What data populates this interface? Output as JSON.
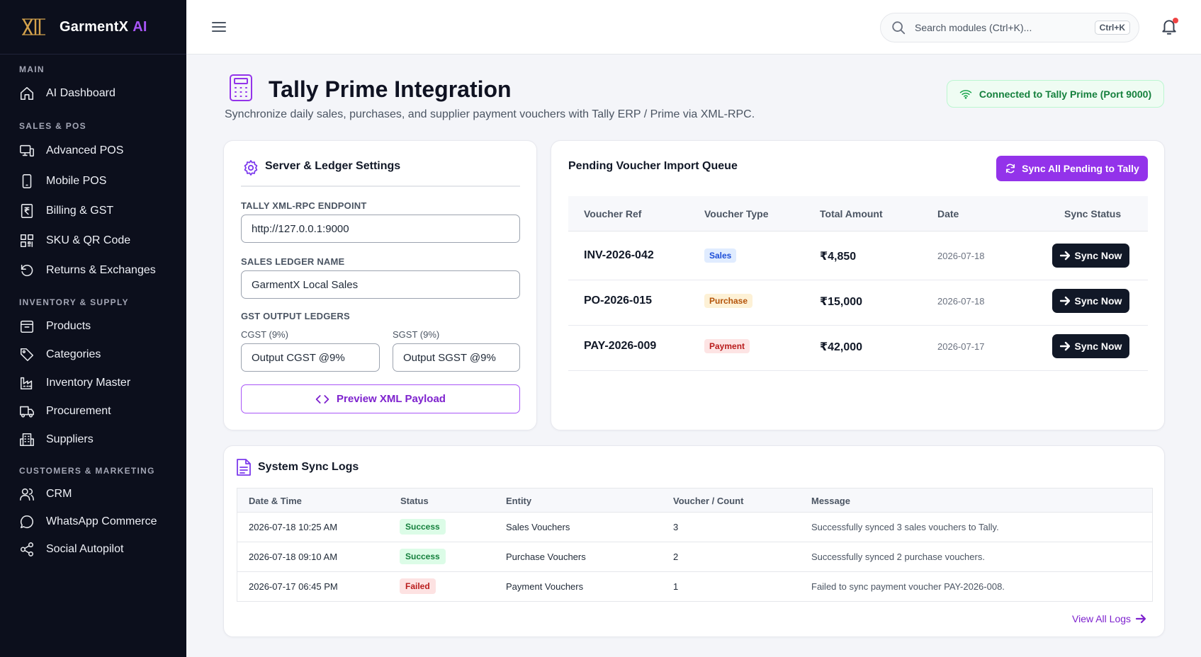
{
  "brand": {
    "name": "GarmentX",
    "accent_word": "AI",
    "accent_color": "#a855f7",
    "logo_icon": "xi-logo-icon"
  },
  "sidebar": {
    "sections": [
      {
        "label": "MAIN",
        "items": [
          {
            "label": "AI Dashboard",
            "icon": "home-icon"
          }
        ]
      },
      {
        "label": "SALES & POS",
        "items": [
          {
            "label": "Advanced POS",
            "icon": "pos-terminal-icon"
          },
          {
            "label": "Mobile POS",
            "icon": "smartphone-icon"
          },
          {
            "label": "Billing & GST",
            "icon": "receipt-icon"
          },
          {
            "label": "SKU & QR Code",
            "icon": "qr-code-icon"
          },
          {
            "label": "Returns & Exchanges",
            "icon": "rotate-ccw-icon"
          }
        ]
      },
      {
        "label": "INVENTORY & SUPPLY",
        "items": [
          {
            "label": "Products",
            "icon": "package-icon"
          },
          {
            "label": "Categories",
            "icon": "tag-icon"
          },
          {
            "label": "Inventory Master",
            "icon": "factory-icon"
          },
          {
            "label": "Procurement",
            "icon": "truck-icon"
          },
          {
            "label": "Suppliers",
            "icon": "building-icon"
          }
        ]
      },
      {
        "label": "CUSTOMERS & MARKETING",
        "items": [
          {
            "label": "CRM",
            "icon": "users-icon"
          },
          {
            "label": "WhatsApp Commerce",
            "icon": "chat-bubble-icon"
          },
          {
            "label": "Social Autopilot",
            "icon": "share-icon"
          }
        ]
      }
    ]
  },
  "topbar": {
    "search_placeholder": "Search modules (Ctrl+K)...",
    "shortcut": "Ctrl+K"
  },
  "page": {
    "title": "Tally Prime Integration",
    "subtitle": "Synchronize daily sales, purchases, and supplier payment vouchers with Tally ERP / Prime via XML-RPC.",
    "connection_status": "Connected to Tally Prime (Port 9000)"
  },
  "settings": {
    "title": "Server & Ledger Settings",
    "endpoint_label": "TALLY XML-RPC ENDPOINT",
    "endpoint_value": "http://127.0.0.1:9000",
    "sales_ledger_label": "SALES LEDGER NAME",
    "sales_ledger_value": "GarmentX Local Sales",
    "gst_label": "GST OUTPUT LEDGERS",
    "cgst_label": "CGST (9%)",
    "cgst_value": "Output CGST @9%",
    "sgst_label": "SGST (9%)",
    "sgst_value": "Output SGST @9%",
    "preview_button": "Preview XML Payload"
  },
  "queue": {
    "title": "Pending Voucher Import Queue",
    "sync_all_button": "Sync All Pending to Tally",
    "columns": [
      "Voucher Ref",
      "Voucher Type",
      "Total Amount",
      "Date",
      "Sync Status"
    ],
    "rows": [
      {
        "ref": "INV-2026-042",
        "type": "Sales",
        "amount": "₹4,850",
        "date": "2026-07-18",
        "action": "Sync Now",
        "type_bg": "#e0ecff",
        "type_fg": "#1d4ed8"
      },
      {
        "ref": "PO-2026-015",
        "type": "Purchase",
        "amount": "₹15,000",
        "date": "2026-07-18",
        "action": "Sync Now",
        "type_bg": "#fdf1d6",
        "type_fg": "#b45309"
      },
      {
        "ref": "PAY-2026-009",
        "type": "Payment",
        "amount": "₹42,000",
        "date": "2026-07-17",
        "action": "Sync Now",
        "type_bg": "#fde4e4",
        "type_fg": "#b91c1c"
      }
    ]
  },
  "logs": {
    "title": "System Sync Logs",
    "columns": [
      "Date & Time",
      "Status",
      "Entity",
      "Voucher / Count",
      "Message"
    ],
    "rows": [
      {
        "datetime": "2026-07-18 10:25 AM",
        "status": "Success",
        "entity": "Sales Vouchers",
        "count": "3",
        "message": "Successfully synced 3 sales vouchers to Tally.",
        "status_bg": "#dcfce7",
        "status_fg": "#15803d"
      },
      {
        "datetime": "2026-07-18 09:10 AM",
        "status": "Success",
        "entity": "Purchase Vouchers",
        "count": "2",
        "message": "Successfully synced 2 purchase vouchers.",
        "status_bg": "#dcfce7",
        "status_fg": "#15803d"
      },
      {
        "datetime": "2026-07-17 06:45 PM",
        "status": "Failed",
        "entity": "Payment Vouchers",
        "count": "1",
        "message": "Failed to sync payment voucher PAY-2026-008.",
        "status_bg": "#fde2e2",
        "status_fg": "#b91c1c"
      }
    ],
    "view_all": "View All Logs"
  }
}
